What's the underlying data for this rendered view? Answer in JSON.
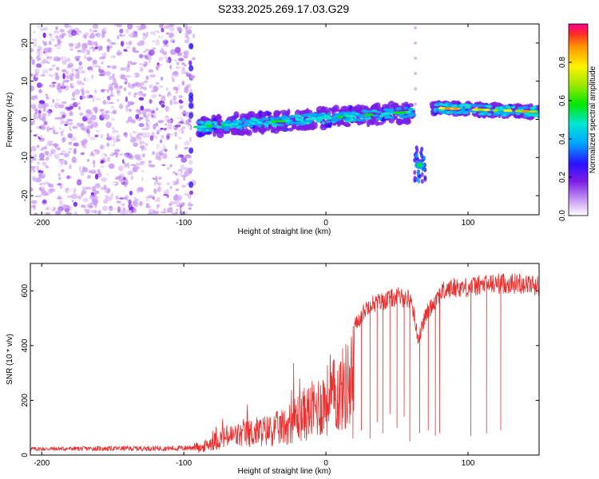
{
  "chart_data": [
    {
      "type": "heatmap",
      "title": "S233.2025.269.17.03.G29",
      "xlabel": "Height of straight line (km)",
      "ylabel": "Frequency (Hz)",
      "xlim": [
        -208,
        150
      ],
      "ylim": [
        -25,
        25
      ],
      "xticks": [
        -200,
        -100,
        0,
        100
      ],
      "yticks": [
        -20,
        -10,
        0,
        10,
        20
      ],
      "colorbar": {
        "label": "Normalized spectral amplitude",
        "range": [
          0,
          1
        ],
        "ticks": [
          "0.0",
          "0.2",
          "0.4",
          "0.6",
          "0.8"
        ],
        "tick_values": [
          0.0,
          0.2,
          0.4,
          0.6,
          0.8
        ]
      },
      "ridge_segments": [
        {
          "name": "noise-region",
          "x_start": -208,
          "x_end": -93,
          "freq_range": [
            -25,
            25
          ],
          "amplitude": 0.15
        },
        {
          "name": "main-ridge",
          "x_start": -90,
          "x_end": 62,
          "freq_start": -2,
          "freq_end": 2,
          "amplitude": 0.55
        },
        {
          "name": "dropout-feature",
          "x_start": 62,
          "x_end": 70,
          "freq_center": -12,
          "amplitude": 0.5
        },
        {
          "name": "strong-ridge",
          "x_start": 75,
          "x_end": 150,
          "freq_start": 3,
          "freq_end": 2,
          "amplitude": 0.85
        }
      ]
    },
    {
      "type": "line",
      "xlabel": "Height of straight line (km)",
      "ylabel": "SNR (10 * v/v)",
      "xlim": [
        -208,
        150
      ],
      "ylim": [
        0,
        700
      ],
      "xticks": [
        -200,
        -100,
        0,
        100
      ],
      "yticks": [
        0,
        200,
        400,
        600
      ],
      "series": [
        {
          "name": "SNR",
          "color": "#e8302f",
          "envelope": [
            {
              "x": -208,
              "y": 20
            },
            {
              "x": -100,
              "y": 25
            },
            {
              "x": -88,
              "y": 40
            },
            {
              "x": -80,
              "y": 80
            },
            {
              "x": -70,
              "y": 110
            },
            {
              "x": -60,
              "y": 120
            },
            {
              "x": -50,
              "y": 140
            },
            {
              "x": -40,
              "y": 150
            },
            {
              "x": -30,
              "y": 170
            },
            {
              "x": -20,
              "y": 230
            },
            {
              "x": -10,
              "y": 270
            },
            {
              "x": 0,
              "y": 330
            },
            {
              "x": 10,
              "y": 380
            },
            {
              "x": 20,
              "y": 480
            },
            {
              "x": 30,
              "y": 560
            },
            {
              "x": 40,
              "y": 575
            },
            {
              "x": 50,
              "y": 590
            },
            {
              "x": 60,
              "y": 580
            },
            {
              "x": 65,
              "y": 430
            },
            {
              "x": 70,
              "y": 520
            },
            {
              "x": 80,
              "y": 605
            },
            {
              "x": 90,
              "y": 625
            },
            {
              "x": 100,
              "y": 625
            },
            {
              "x": 110,
              "y": 635
            },
            {
              "x": 120,
              "y": 640
            },
            {
              "x": 130,
              "y": 640
            },
            {
              "x": 140,
              "y": 640
            },
            {
              "x": 150,
              "y": 630
            }
          ],
          "dropouts": [
            {
              "x": 19,
              "y": 60
            },
            {
              "x": 25,
              "y": 90
            },
            {
              "x": 31,
              "y": 60
            },
            {
              "x": 36,
              "y": 120
            },
            {
              "x": 40,
              "y": 80
            },
            {
              "x": 45,
              "y": 150
            },
            {
              "x": 50,
              "y": 100
            },
            {
              "x": 55,
              "y": 140
            },
            {
              "x": 59,
              "y": 50
            },
            {
              "x": 66,
              "y": 80
            },
            {
              "x": 72,
              "y": 90
            },
            {
              "x": 77,
              "y": 70
            },
            {
              "x": 80,
              "y": 80
            },
            {
              "x": 102,
              "y": 70
            },
            {
              "x": 113,
              "y": 80
            },
            {
              "x": 123,
              "y": 90
            }
          ]
        }
      ]
    }
  ]
}
